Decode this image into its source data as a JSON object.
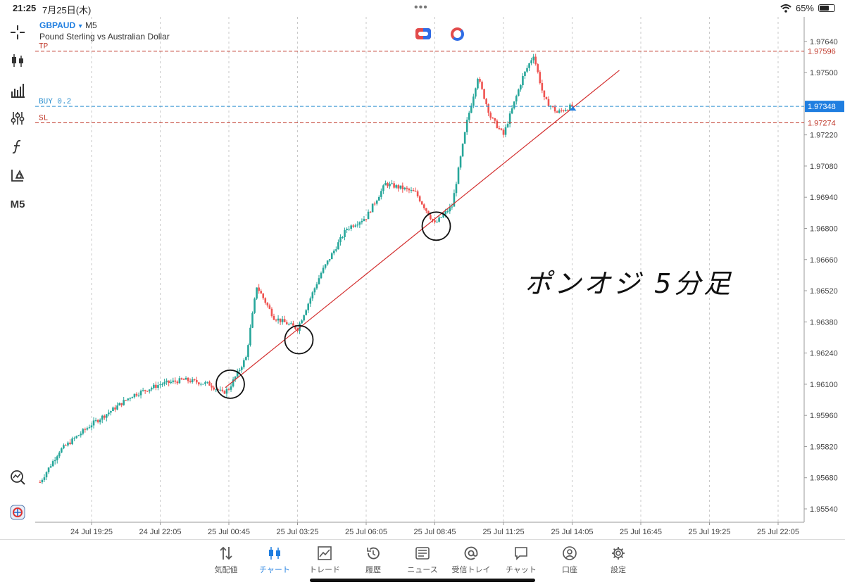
{
  "status_bar": {
    "time": "21:25",
    "date": "7月25日(木)",
    "battery": "65%",
    "battery_fraction": 0.65
  },
  "chart": {
    "symbol": "GBPAUD",
    "symbol_arrow": "▾",
    "timeframe": "M5",
    "description": "Pound Sterling vs Australian Dollar",
    "left_toolbar_timeframe": "M5",
    "handwritten_note": "ポンオジ 5分足",
    "price_min": 1.9548,
    "price_max": 1.9775,
    "price_ticks": [
      "1.97640",
      "1.97500",
      "1.97220",
      "1.97080",
      "1.96940",
      "1.96800",
      "1.96660",
      "1.96520",
      "1.96380",
      "1.96240",
      "1.96100",
      "1.95960",
      "1.95820",
      "1.95680",
      "1.95540"
    ],
    "time_labels": [
      "24 Jul 19:25",
      "24 Jul 22:05",
      "25 Jul 00:45",
      "25 Jul 03:25",
      "25 Jul 06:05",
      "25 Jul 08:45",
      "25 Jul 11:25",
      "25 Jul 14:05",
      "25 Jul 16:45",
      "25 Jul 19:25",
      "25 Jul 22:05"
    ],
    "levels": [
      {
        "label": "TP",
        "price": 1.97596,
        "price_text": "1.97596",
        "color": "#c0392b",
        "style": "dashed"
      },
      {
        "label": "BUY 0.2",
        "price": 1.97348,
        "price_text": "1.97348",
        "color": "#2b8fcf",
        "style": "dashed"
      },
      {
        "label": "SL",
        "price": 1.97274,
        "price_text": "1.97274",
        "color": "#c0392b",
        "style": "dashed"
      }
    ],
    "colors": {
      "bull": "#26a69a",
      "bear": "#ef5350",
      "trendline": "#d32f2f",
      "grid": "#c9c9c9",
      "accent": "#1f7ee0"
    }
  },
  "chart_data": {
    "type": "candlestick",
    "symbol": "GBPAUD",
    "timeframe": "M5",
    "ylim": [
      1.9548,
      1.9775
    ],
    "x_tick_labels": [
      "24 Jul 19:25",
      "24 Jul 22:05",
      "25 Jul 00:45",
      "25 Jul 03:25",
      "25 Jul 06:05",
      "25 Jul 08:45",
      "25 Jul 11:25",
      "25 Jul 14:05",
      "25 Jul 16:45",
      "25 Jul 19:25",
      "25 Jul 22:05"
    ],
    "close_path": [
      [
        "24 Jul 17:25",
        1.9566
      ],
      [
        "24 Jul 18:10",
        1.958
      ],
      [
        "24 Jul 19:00",
        1.9588
      ],
      [
        "24 Jul 19:25",
        1.9592
      ],
      [
        "24 Jul 20:10",
        1.9598
      ],
      [
        "24 Jul 21:00",
        1.9605
      ],
      [
        "24 Jul 22:05",
        1.961
      ],
      [
        "24 Jul 23:00",
        1.9612
      ],
      [
        "25 Jul 00:00",
        1.961
      ],
      [
        "25 Jul 00:30",
        1.9606
      ],
      [
        "25 Jul 00:45",
        1.9608
      ],
      [
        "25 Jul 01:25",
        1.9622
      ],
      [
        "25 Jul 01:50",
        1.9654
      ],
      [
        "25 Jul 02:30",
        1.964
      ],
      [
        "25 Jul 03:25",
        1.9635
      ],
      [
        "25 Jul 04:20",
        1.966
      ],
      [
        "25 Jul 05:20",
        1.968
      ],
      [
        "25 Jul 06:05",
        1.9685
      ],
      [
        "25 Jul 06:50",
        1.97
      ],
      [
        "25 Jul 07:30",
        1.9698
      ],
      [
        "25 Jul 08:00",
        1.9696
      ],
      [
        "25 Jul 08:45",
        1.9682
      ],
      [
        "25 Jul 09:25",
        1.969
      ],
      [
        "25 Jul 10:00",
        1.9728
      ],
      [
        "25 Jul 10:25",
        1.9748
      ],
      [
        "25 Jul 10:55",
        1.973
      ],
      [
        "25 Jul 11:25",
        1.9722
      ],
      [
        "25 Jul 12:10",
        1.9748
      ],
      [
        "25 Jul 12:35",
        1.9758
      ],
      [
        "25 Jul 13:00",
        1.9738
      ],
      [
        "25 Jul 13:30",
        1.9732
      ],
      [
        "25 Jul 14:05",
        1.9735
      ]
    ],
    "levels": {
      "TP": 1.97596,
      "BUY 0.2": 1.97348,
      "SL": 1.97274
    }
  },
  "tabs": [
    {
      "label": "気配値",
      "icon": "arrows-updown-icon"
    },
    {
      "label": "チャート",
      "icon": "candles-icon",
      "active": true
    },
    {
      "label": "トレード",
      "icon": "trade-chart-icon"
    },
    {
      "label": "履歴",
      "icon": "history-icon"
    },
    {
      "label": "ニュース",
      "icon": "news-icon"
    },
    {
      "label": "受信トレイ",
      "icon": "at-icon"
    },
    {
      "label": "チャット",
      "icon": "chat-icon"
    },
    {
      "label": "口座",
      "icon": "account-icon"
    },
    {
      "label": "設定",
      "icon": "gear-icon"
    }
  ]
}
